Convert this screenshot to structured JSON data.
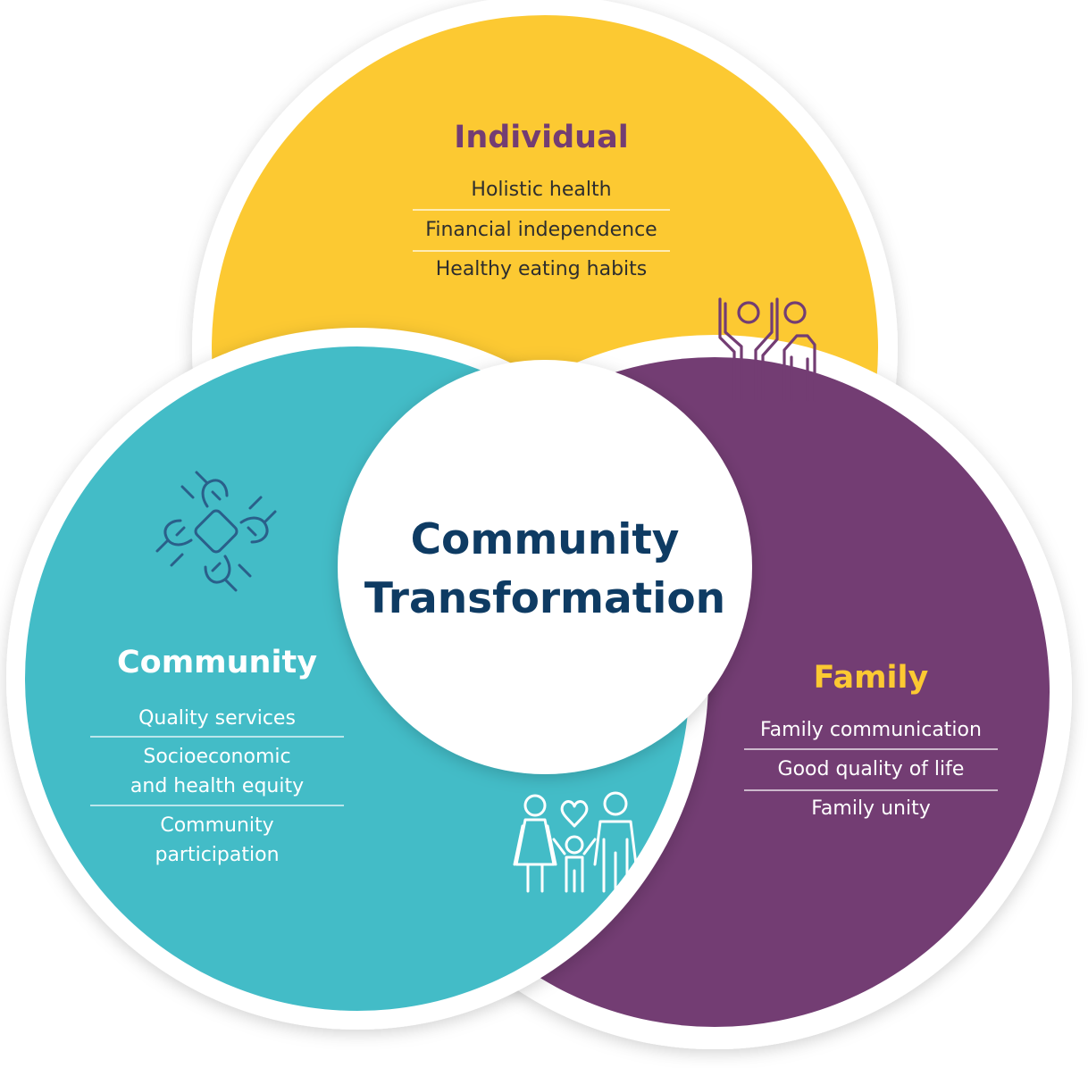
{
  "center": {
    "line1": "Community",
    "line2": "Transformation"
  },
  "individual": {
    "title": "Individual",
    "items": [
      "Holistic health",
      "Financial independence",
      "Healthy eating habits"
    ],
    "color": "#fcc932",
    "title_color": "#733d73",
    "icon": "people-raising-hands-icon"
  },
  "community": {
    "title": "Community",
    "items": [
      "Quality services",
      "Socioeconomic",
      "and health equity",
      "Community",
      "participation"
    ],
    "color": "#43bcc7",
    "icon": "joined-hands-icon"
  },
  "family": {
    "title": "Family",
    "items": [
      "Family communication",
      "Good quality of life",
      "Family unity"
    ],
    "color": "#733d73",
    "title_color": "#fcc932",
    "icon": "family-heart-icon"
  },
  "colors": {
    "center_text": "#0e3b63",
    "body_text": "#2e2e2e"
  }
}
